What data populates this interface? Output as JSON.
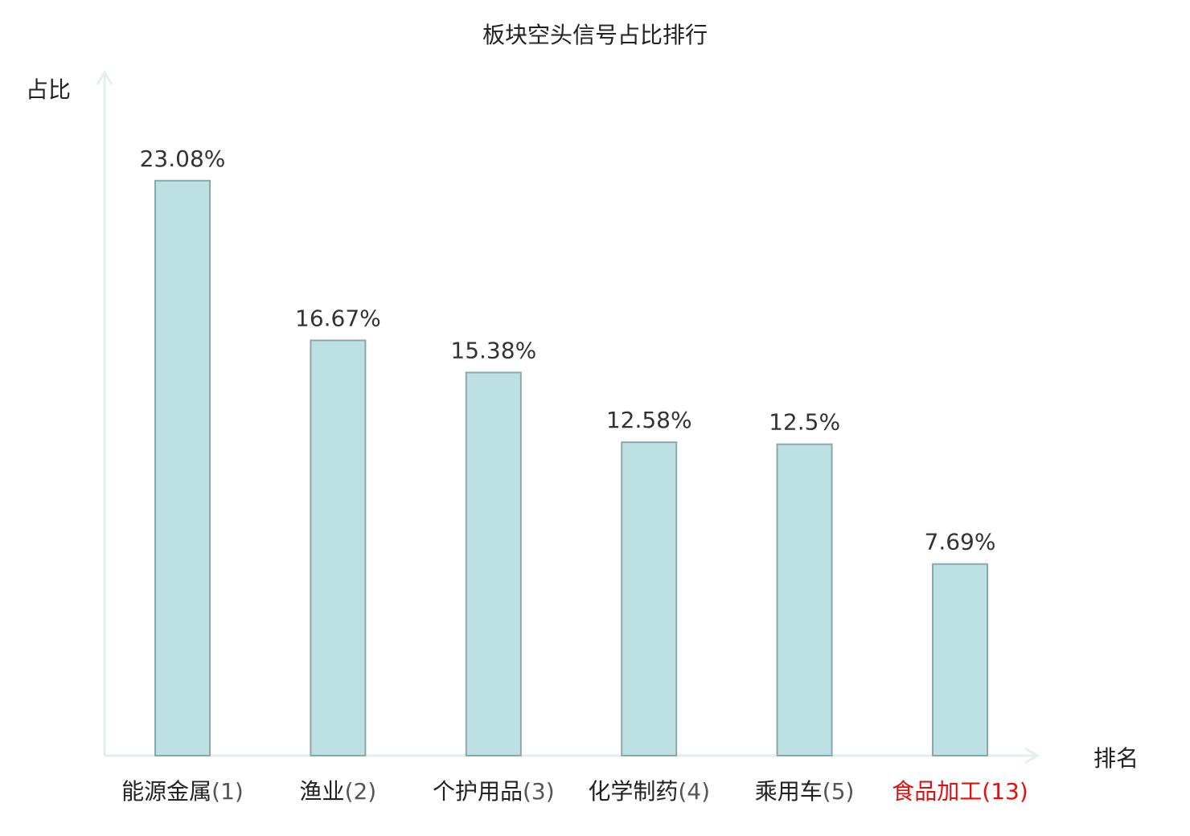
{
  "chart_data": {
    "type": "bar",
    "title": "板块空头信号占比排行",
    "xlabel": "排名",
    "ylabel": "占比",
    "categories": [
      "能源金属",
      "渔业",
      "个护用品",
      "化学制药",
      "乘用车",
      "食品加工"
    ],
    "ranks": [
      "(1)",
      "(2)",
      "(3)",
      "(4)",
      "(5)",
      "(13)"
    ],
    "values": [
      23.08,
      16.67,
      15.38,
      12.58,
      12.5,
      7.69
    ],
    "value_labels": [
      "23.08%",
      "16.67%",
      "15.38%",
      "12.58%",
      "12.5%",
      "7.69%"
    ],
    "highlight_index": 5,
    "ylim": [
      0,
      25.3
    ],
    "grid": false,
    "colors": {
      "bar_fill": "#bde0e2",
      "bar_stroke": "#8aa8aa",
      "axis": "#dff0ee",
      "category_text": "#222222",
      "rank_text": "#555555",
      "highlight": "#e01010"
    }
  }
}
